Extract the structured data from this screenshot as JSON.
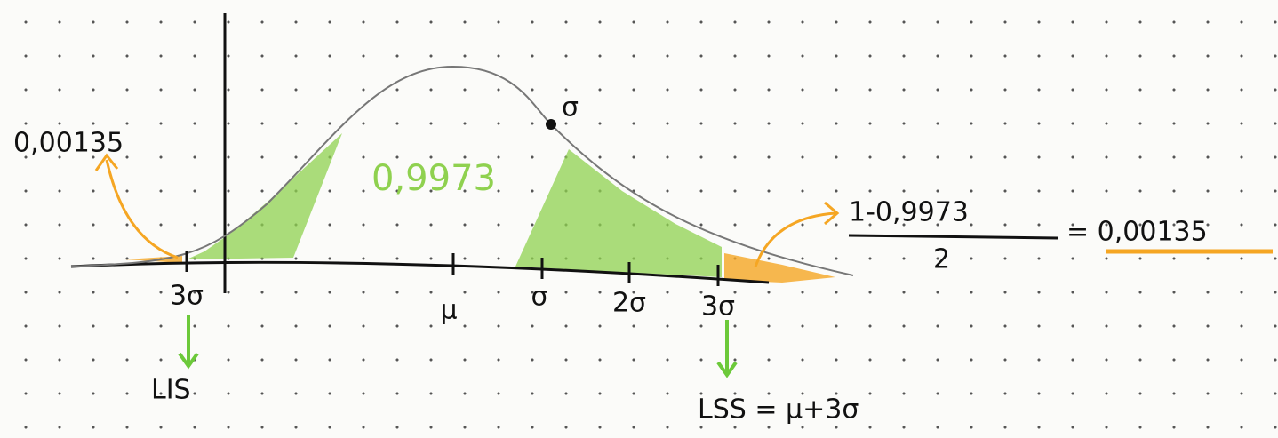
{
  "annotations": {
    "left_tail": "0,00135",
    "center_area": "0,9973",
    "inflection": "σ"
  },
  "axis_ticks": [
    "3σ",
    "μ",
    "σ",
    "2σ",
    "3σ"
  ],
  "limits": {
    "lower": "LIS",
    "upper": "LSS = μ+3σ"
  },
  "formula": {
    "numerator": "1-0,9973",
    "denominator": "2",
    "result": "= 0,00135"
  }
}
